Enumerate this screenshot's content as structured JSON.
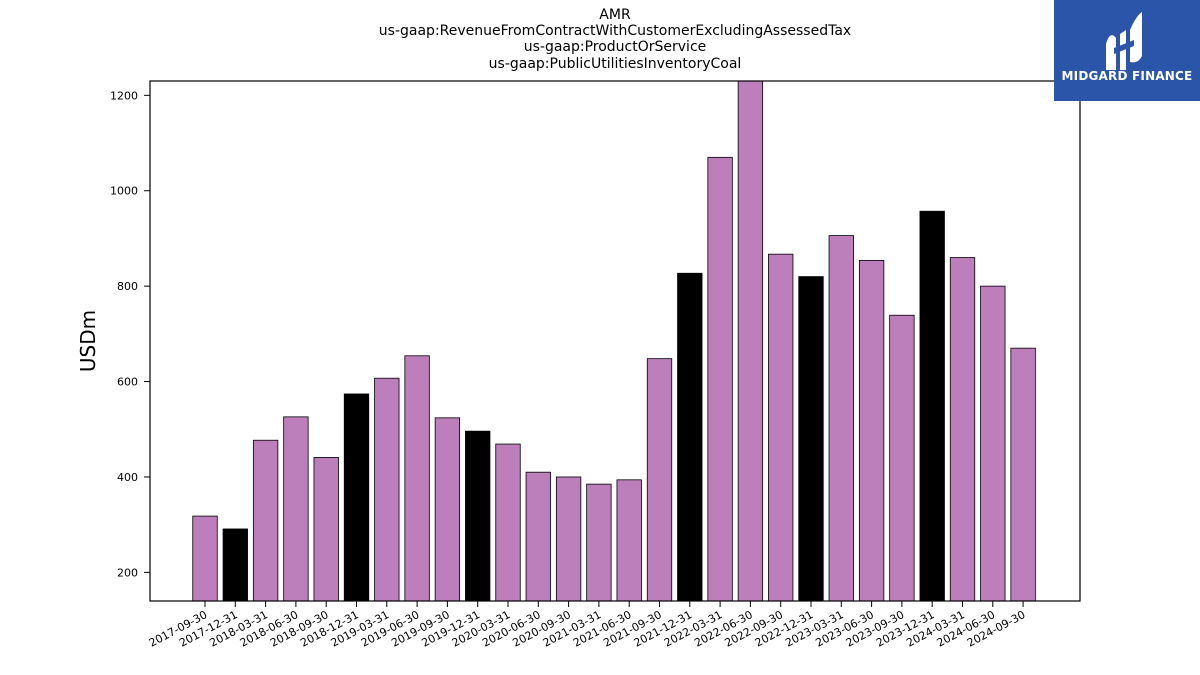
{
  "chart_data": {
    "type": "bar",
    "title_lines": [
      "AMR",
      "us-gaap:RevenueFromContractWithCustomerExcludingAssessedTax",
      "us-gaap:ProductOrService",
      "us-gaap:PublicUtilitiesInventoryCoal"
    ],
    "ylabel": "USDm",
    "xlabel": "",
    "ylim": [
      140,
      1230
    ],
    "yticks": [
      200,
      400,
      600,
      800,
      1000,
      1200
    ],
    "categories": [
      "2017-09-30",
      "2017-12-31",
      "2018-03-31",
      "2018-06-30",
      "2018-09-30",
      "2018-12-31",
      "2019-03-31",
      "2019-06-30",
      "2019-09-30",
      "2019-12-31",
      "2020-03-31",
      "2020-06-30",
      "2020-09-30",
      "2021-03-31",
      "2021-06-30",
      "2021-09-30",
      "2021-12-31",
      "2022-03-31",
      "2022-06-30",
      "2022-09-30",
      "2022-12-31",
      "2023-03-31",
      "2023-06-30",
      "2023-09-30",
      "2023-12-31",
      "2024-03-31",
      "2024-06-30",
      "2024-09-30"
    ],
    "values": [
      318,
      291,
      477,
      526,
      441,
      574,
      607,
      654,
      524,
      496,
      469,
      410,
      400,
      385,
      394,
      648,
      827,
      1070,
      1230,
      867,
      820,
      906,
      854,
      739,
      957,
      860,
      800,
      670
    ],
    "fiscal_year_end": [
      false,
      true,
      false,
      false,
      false,
      true,
      false,
      false,
      false,
      true,
      false,
      false,
      false,
      false,
      false,
      false,
      true,
      false,
      false,
      false,
      true,
      false,
      false,
      false,
      true,
      false,
      false,
      false
    ],
    "colors": {
      "quarter": "#bc7fbc",
      "year_end": "#000000",
      "edge": "#000000"
    },
    "grid": false
  },
  "logo": {
    "text": "MIDGARD FINANCE",
    "bg": "#2b55a8"
  }
}
